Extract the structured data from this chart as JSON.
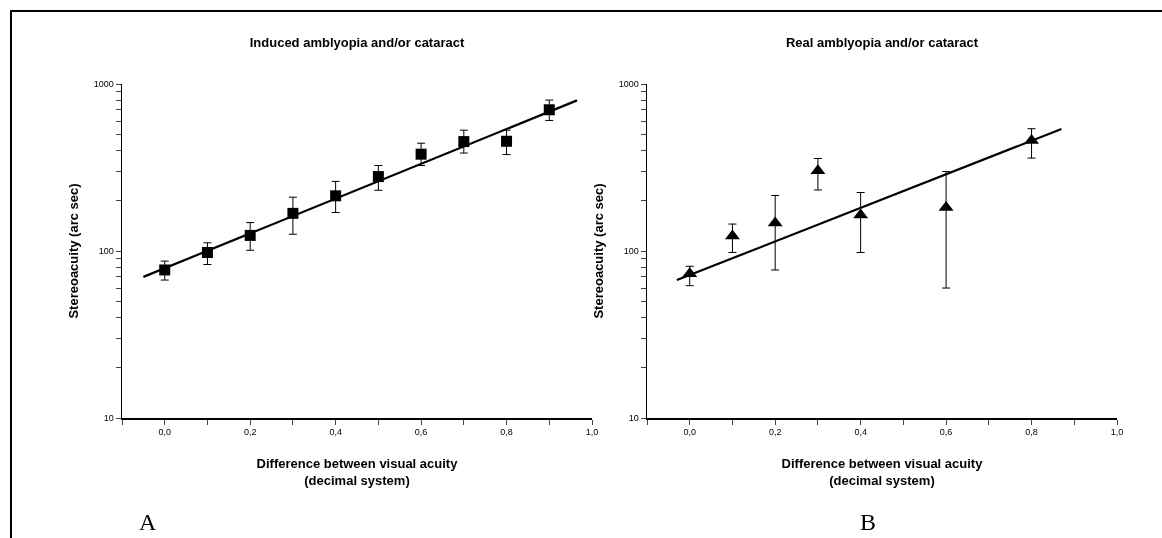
{
  "chart_data": [
    {
      "type": "scatter",
      "title": "Induced amblyopia and/or cataract",
      "xlabel": "Difference between visual acuity\n(decimal system)",
      "ylabel": "Stereoacuity (arc sec)",
      "log": "y",
      "xlim": [
        -0.1,
        1.0
      ],
      "xticks": [
        {
          "value": -0.1,
          "label": null
        },
        {
          "value": 0,
          "label": "0,0"
        },
        {
          "value": 0.1,
          "label": null
        },
        {
          "value": 0.2,
          "label": "0,2"
        },
        {
          "value": 0.3,
          "label": null
        },
        {
          "value": 0.4,
          "label": "0,4"
        },
        {
          "value": 0.5,
          "label": null
        },
        {
          "value": 0.6,
          "label": "0,6"
        },
        {
          "value": 0.7,
          "label": null
        },
        {
          "value": 0.8,
          "label": "0,8"
        },
        {
          "value": 0.9,
          "label": null
        },
        {
          "value": 1.0,
          "label": "1,0"
        }
      ],
      "ylim": [
        10,
        1000
      ],
      "yticks": [
        10,
        {
          "value": 20,
          "label": null
        },
        {
          "value": 30,
          "label": null
        },
        {
          "value": 40,
          "label": null
        },
        {
          "value": 50,
          "label": null
        },
        {
          "value": 60,
          "label": null
        },
        {
          "value": 70,
          "label": null
        },
        {
          "value": 80,
          "label": null
        },
        {
          "value": 90,
          "label": null
        },
        100,
        {
          "value": 200,
          "label": null
        },
        {
          "value": 300,
          "label": null
        },
        {
          "value": 400,
          "label": null
        },
        {
          "value": 500,
          "label": null
        },
        {
          "value": 600,
          "label": null
        },
        {
          "value": 700,
          "label": null
        },
        {
          "value": 800,
          "label": null
        },
        {
          "value": 900,
          "label": null
        },
        1000
      ],
      "annotations": [
        "A"
      ],
      "series": [
        {
          "type": "scatter",
          "marker": "square",
          "color": "#000000",
          "x": [
            0,
            0.1,
            0.2,
            0.3,
            0.4,
            0.5,
            0.6,
            0.7,
            0.8,
            0.9
          ],
          "values": [
            77,
            98,
            124,
            168,
            214,
            279,
            380,
            452,
            454,
            701
          ],
          "errors": [
            [
              67,
              87
            ],
            [
              83,
              112
            ],
            [
              101,
              148
            ],
            [
              126,
              210
            ],
            [
              170,
              261
            ],
            [
              231,
              325
            ],
            [
              325,
              442
            ],
            [
              386,
              529
            ],
            [
              378,
              529
            ],
            [
              605,
              801
            ]
          ]
        },
        {
          "type": "line",
          "marker": "none",
          "line_style": "solid",
          "color": "#000000",
          "x": [
            -0.05,
            0.965
          ],
          "values": [
            70,
            798
          ]
        }
      ]
    },
    {
      "type": "scatter",
      "title": "Real amblyopia and/or cataract",
      "xlabel": "Difference between visual acuity\n(decimal system)",
      "ylabel": "Stereoacuity (arc sec)",
      "log": "y",
      "xlim": [
        -0.1,
        1.0
      ],
      "xticks": [
        {
          "value": -0.1,
          "label": null
        },
        {
          "value": 0,
          "label": "0,0"
        },
        {
          "value": 0.1,
          "label": null
        },
        {
          "value": 0.2,
          "label": "0,2"
        },
        {
          "value": 0.3,
          "label": null
        },
        {
          "value": 0.4,
          "label": "0,4"
        },
        {
          "value": 0.5,
          "label": null
        },
        {
          "value": 0.6,
          "label": "0,6"
        },
        {
          "value": 0.7,
          "label": null
        },
        {
          "value": 0.8,
          "label": "0,8"
        },
        {
          "value": 0.9,
          "label": null
        },
        {
          "value": 1.0,
          "label": "1,0"
        }
      ],
      "ylim": [
        10,
        1000
      ],
      "yticks": [
        10,
        {
          "value": 20,
          "label": null
        },
        {
          "value": 30,
          "label": null
        },
        {
          "value": 40,
          "label": null
        },
        {
          "value": 50,
          "label": null
        },
        {
          "value": 60,
          "label": null
        },
        {
          "value": 70,
          "label": null
        },
        {
          "value": 80,
          "label": null
        },
        {
          "value": 90,
          "label": null
        },
        100,
        {
          "value": 200,
          "label": null
        },
        {
          "value": 300,
          "label": null
        },
        {
          "value": 400,
          "label": null
        },
        {
          "value": 500,
          "label": null
        },
        {
          "value": 600,
          "label": null
        },
        {
          "value": 700,
          "label": null
        },
        {
          "value": 800,
          "label": null
        },
        {
          "value": 900,
          "label": null
        },
        1000
      ],
      "annotations": [
        "B"
      ],
      "series": [
        {
          "type": "scatter",
          "marker": "triangle",
          "color": "#000000",
          "x": [
            0,
            0.1,
            0.2,
            0.3,
            0.4,
            0.6,
            0.8
          ],
          "values": [
            73,
            123,
            147,
            302,
            164,
            182,
            459
          ],
          "errors": [
            [
              62,
              81
            ],
            [
              98,
              145
            ],
            [
              77,
              215
            ],
            [
              232,
              358
            ],
            [
              98,
              224
            ],
            [
              60,
              299
            ],
            [
              360,
              540
            ]
          ]
        },
        {
          "type": "line",
          "marker": "none",
          "line_style": "solid",
          "color": "#000000",
          "x": [
            -0.03,
            0.87
          ],
          "values": [
            67,
            538
          ]
        }
      ]
    }
  ]
}
